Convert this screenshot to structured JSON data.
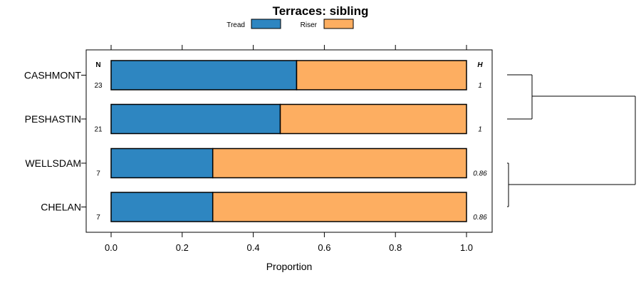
{
  "chart_data": {
    "type": "bar",
    "orientation": "horizontal",
    "stacked": true,
    "title": "Terraces: sibling",
    "xlabel": "Proportion",
    "ylabel": "",
    "xlim": [
      0,
      1
    ],
    "xticks": [
      "0.0",
      "0.2",
      "0.4",
      "0.6",
      "0.8",
      "1.0"
    ],
    "categories": [
      "CASHMONT",
      "PESHASTIN",
      "WELLSDAM",
      "CHELAN"
    ],
    "series": [
      {
        "name": "Tread",
        "color": "#2e86c1",
        "values": [
          0.522,
          0.476,
          0.286,
          0.286
        ]
      },
      {
        "name": "Riser",
        "color": "#fdae61",
        "values": [
          0.478,
          0.524,
          0.714,
          0.714
        ]
      }
    ],
    "n_header": "N",
    "n_values": [
      "23",
      "21",
      "7",
      "7"
    ],
    "h_header": "H",
    "h_values": [
      "1",
      "1",
      "0.86",
      "0.86"
    ],
    "legend": [
      "Tread",
      "Riser"
    ],
    "legend_position": "top",
    "dendrogram": {
      "clusters": [
        [
          "CASHMONT",
          "PESHASTIN"
        ],
        [
          "WELLSDAM",
          "CHELAN"
        ]
      ]
    }
  }
}
